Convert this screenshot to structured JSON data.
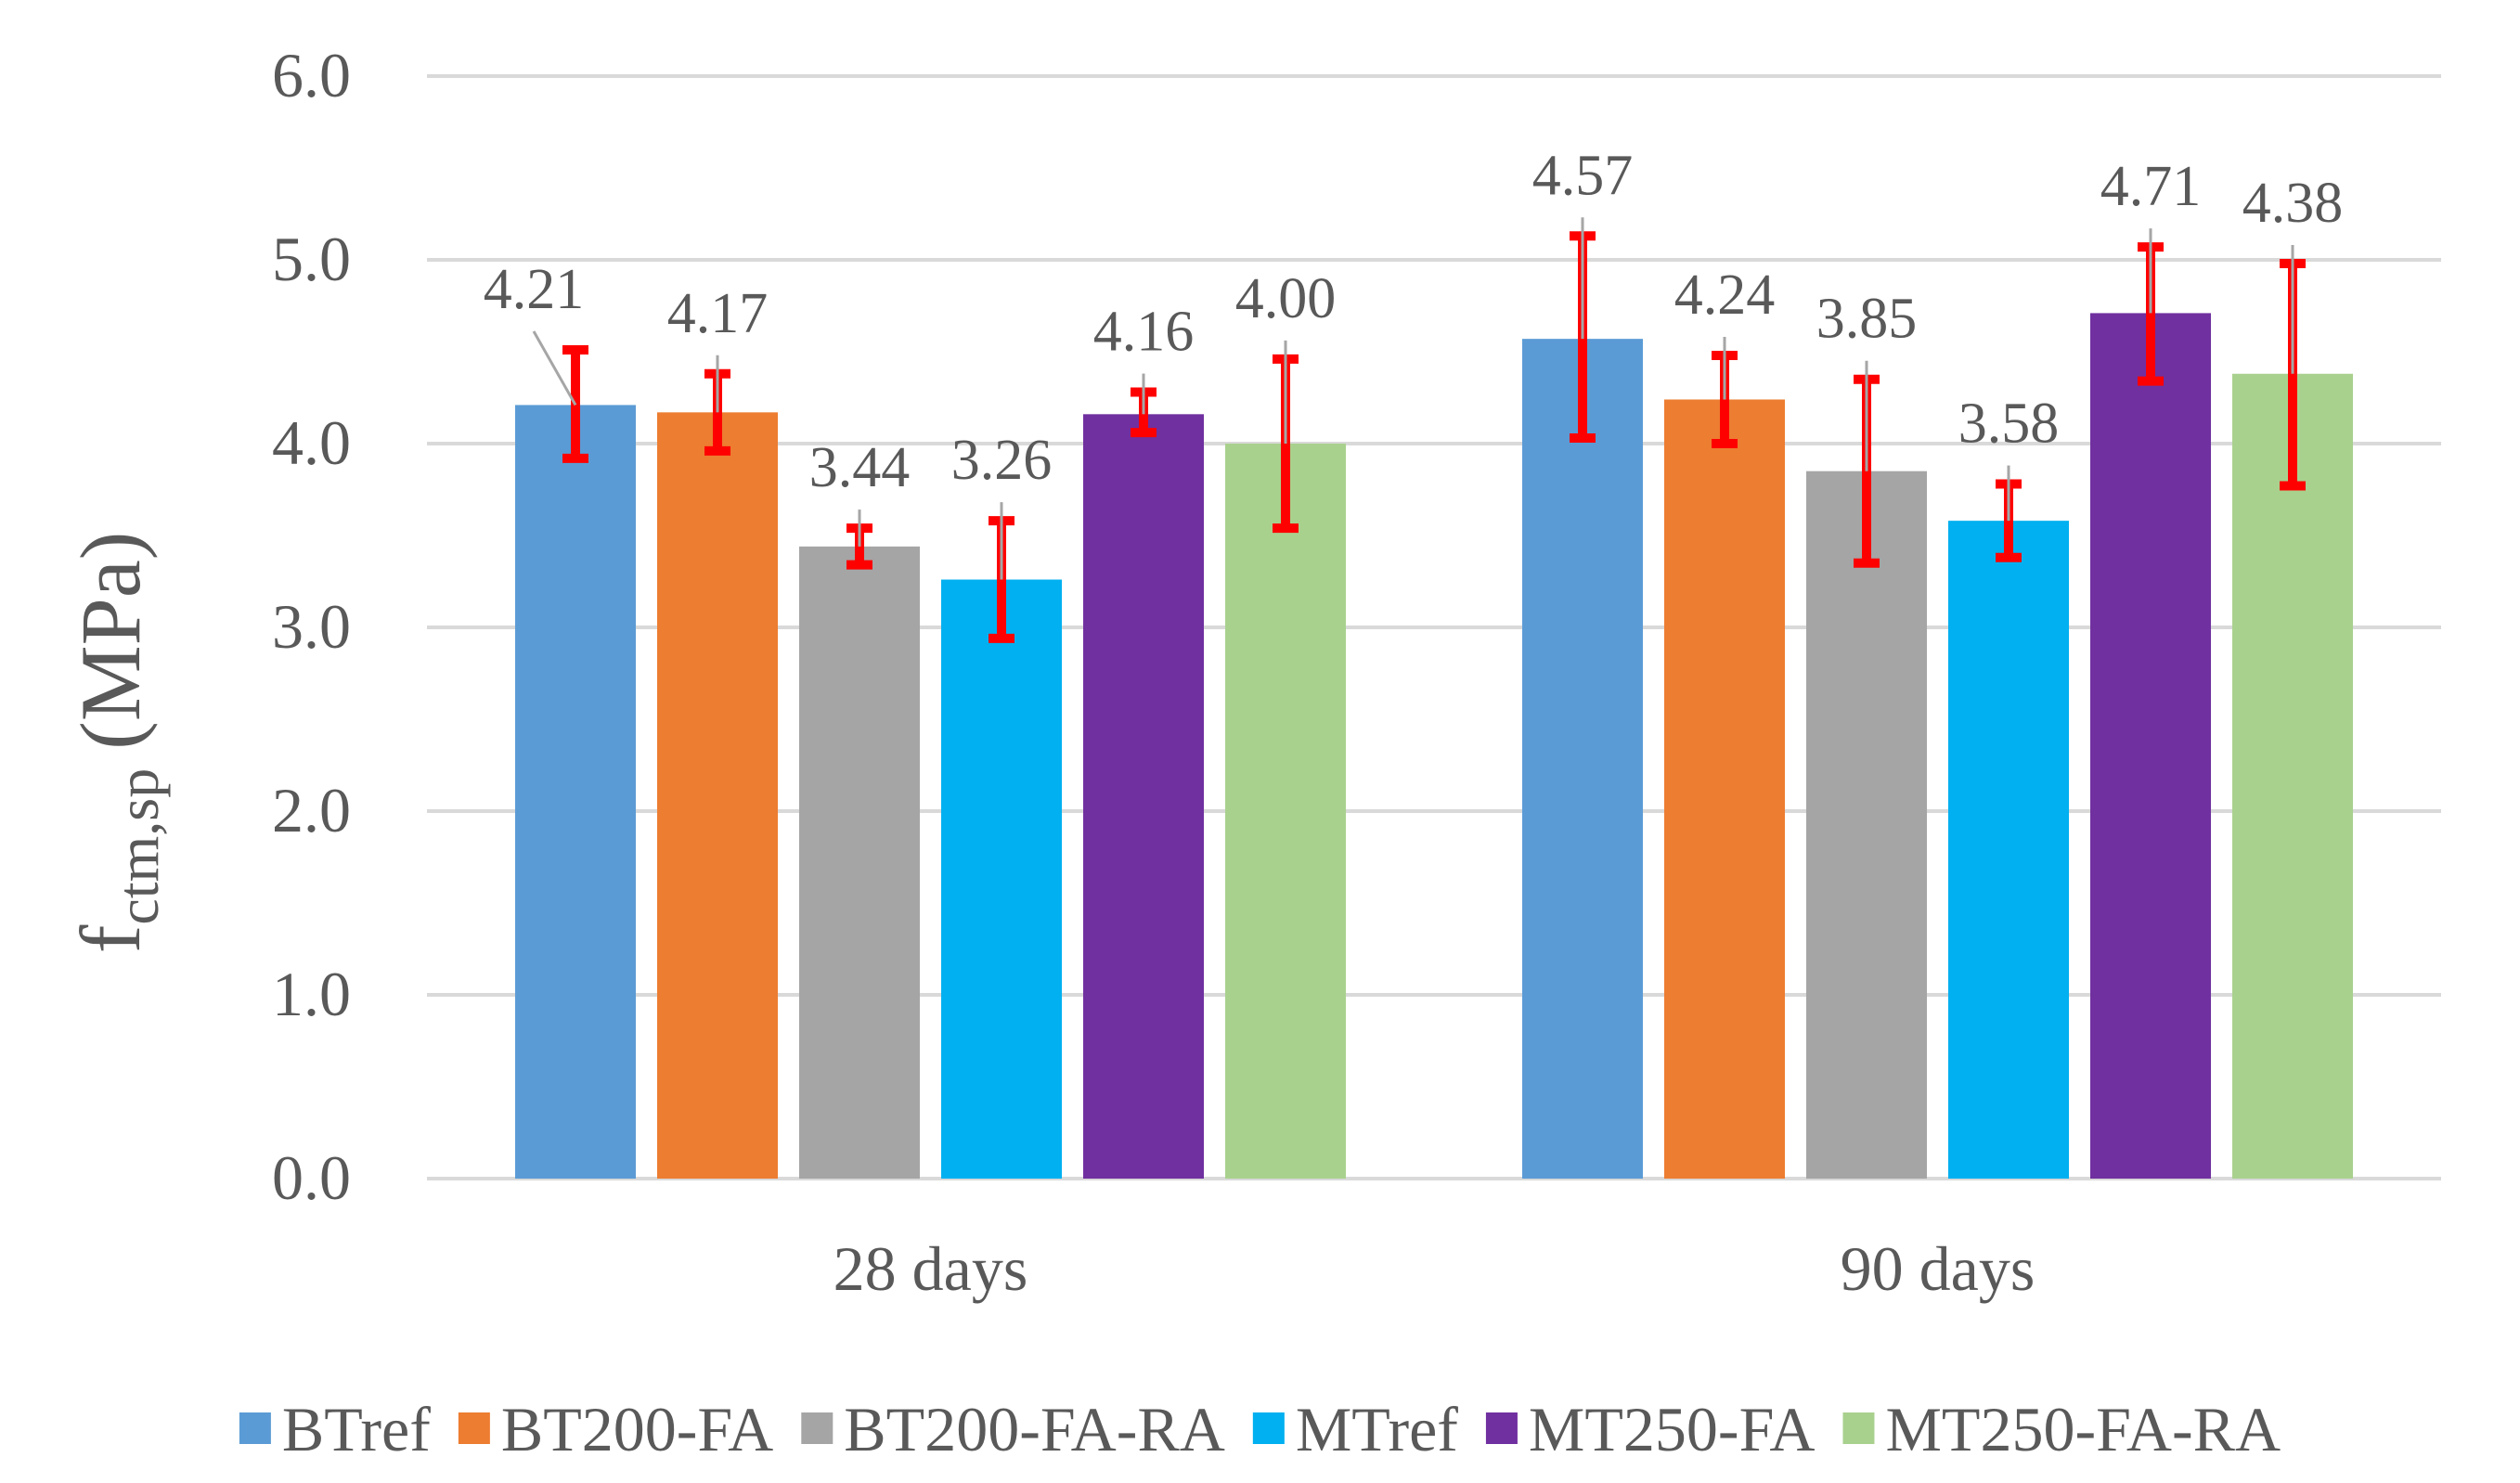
{
  "chart_data": {
    "type": "bar",
    "categories": [
      "28 days",
      "90 days"
    ],
    "series": [
      {
        "name": "BTref",
        "color": "#5B9BD5",
        "values": [
          4.21,
          4.57
        ],
        "err_low": [
          3.92,
          4.03
        ],
        "err_high": [
          4.51,
          5.13
        ],
        "labels": [
          "4.21",
          "4.57"
        ]
      },
      {
        "name": "BT200-FA",
        "color": "#ED7D31",
        "values": [
          4.17,
          4.24
        ],
        "err_low": [
          3.96,
          4.0
        ],
        "err_high": [
          4.38,
          4.48
        ],
        "labels": [
          "4.17",
          "4.24"
        ]
      },
      {
        "name": "BT200-FA-RA",
        "color": "#A5A5A5",
        "values": [
          3.44,
          3.85
        ],
        "err_low": [
          3.34,
          3.35
        ],
        "err_high": [
          3.54,
          4.35
        ],
        "labels": [
          "3.44",
          "3.85"
        ]
      },
      {
        "name": "MTref",
        "color": "#00B0F0",
        "values": [
          3.26,
          3.58
        ],
        "err_low": [
          2.94,
          3.38
        ],
        "err_high": [
          3.58,
          3.78
        ],
        "labels": [
          "3.26",
          "3.58"
        ]
      },
      {
        "name": "MT250-FA",
        "color": "#7030A0",
        "values": [
          4.16,
          4.71
        ],
        "err_low": [
          4.06,
          4.34
        ],
        "err_high": [
          4.28,
          5.07
        ],
        "labels": [
          "4.16",
          "4.71"
        ]
      },
      {
        "name": "MT250-FA-RA",
        "color": "#A9D18E",
        "values": [
          4.0,
          4.38
        ],
        "err_low": [
          3.54,
          3.77
        ],
        "err_high": [
          4.46,
          4.98
        ],
        "labels": [
          "4.00",
          "4.38"
        ]
      }
    ],
    "ylim": [
      0,
      6
    ],
    "yticks": [
      "0.0",
      "1.0",
      "2.0",
      "3.0",
      "4.0",
      "5.0",
      "6.0"
    ],
    "ylabel_main": "f",
    "ylabel_sub": "ctm,sp",
    "ylabel_unit": "(MPa)",
    "error_bar_color": "#FF0000",
    "gridlines": true,
    "legend_position": "bottom"
  }
}
